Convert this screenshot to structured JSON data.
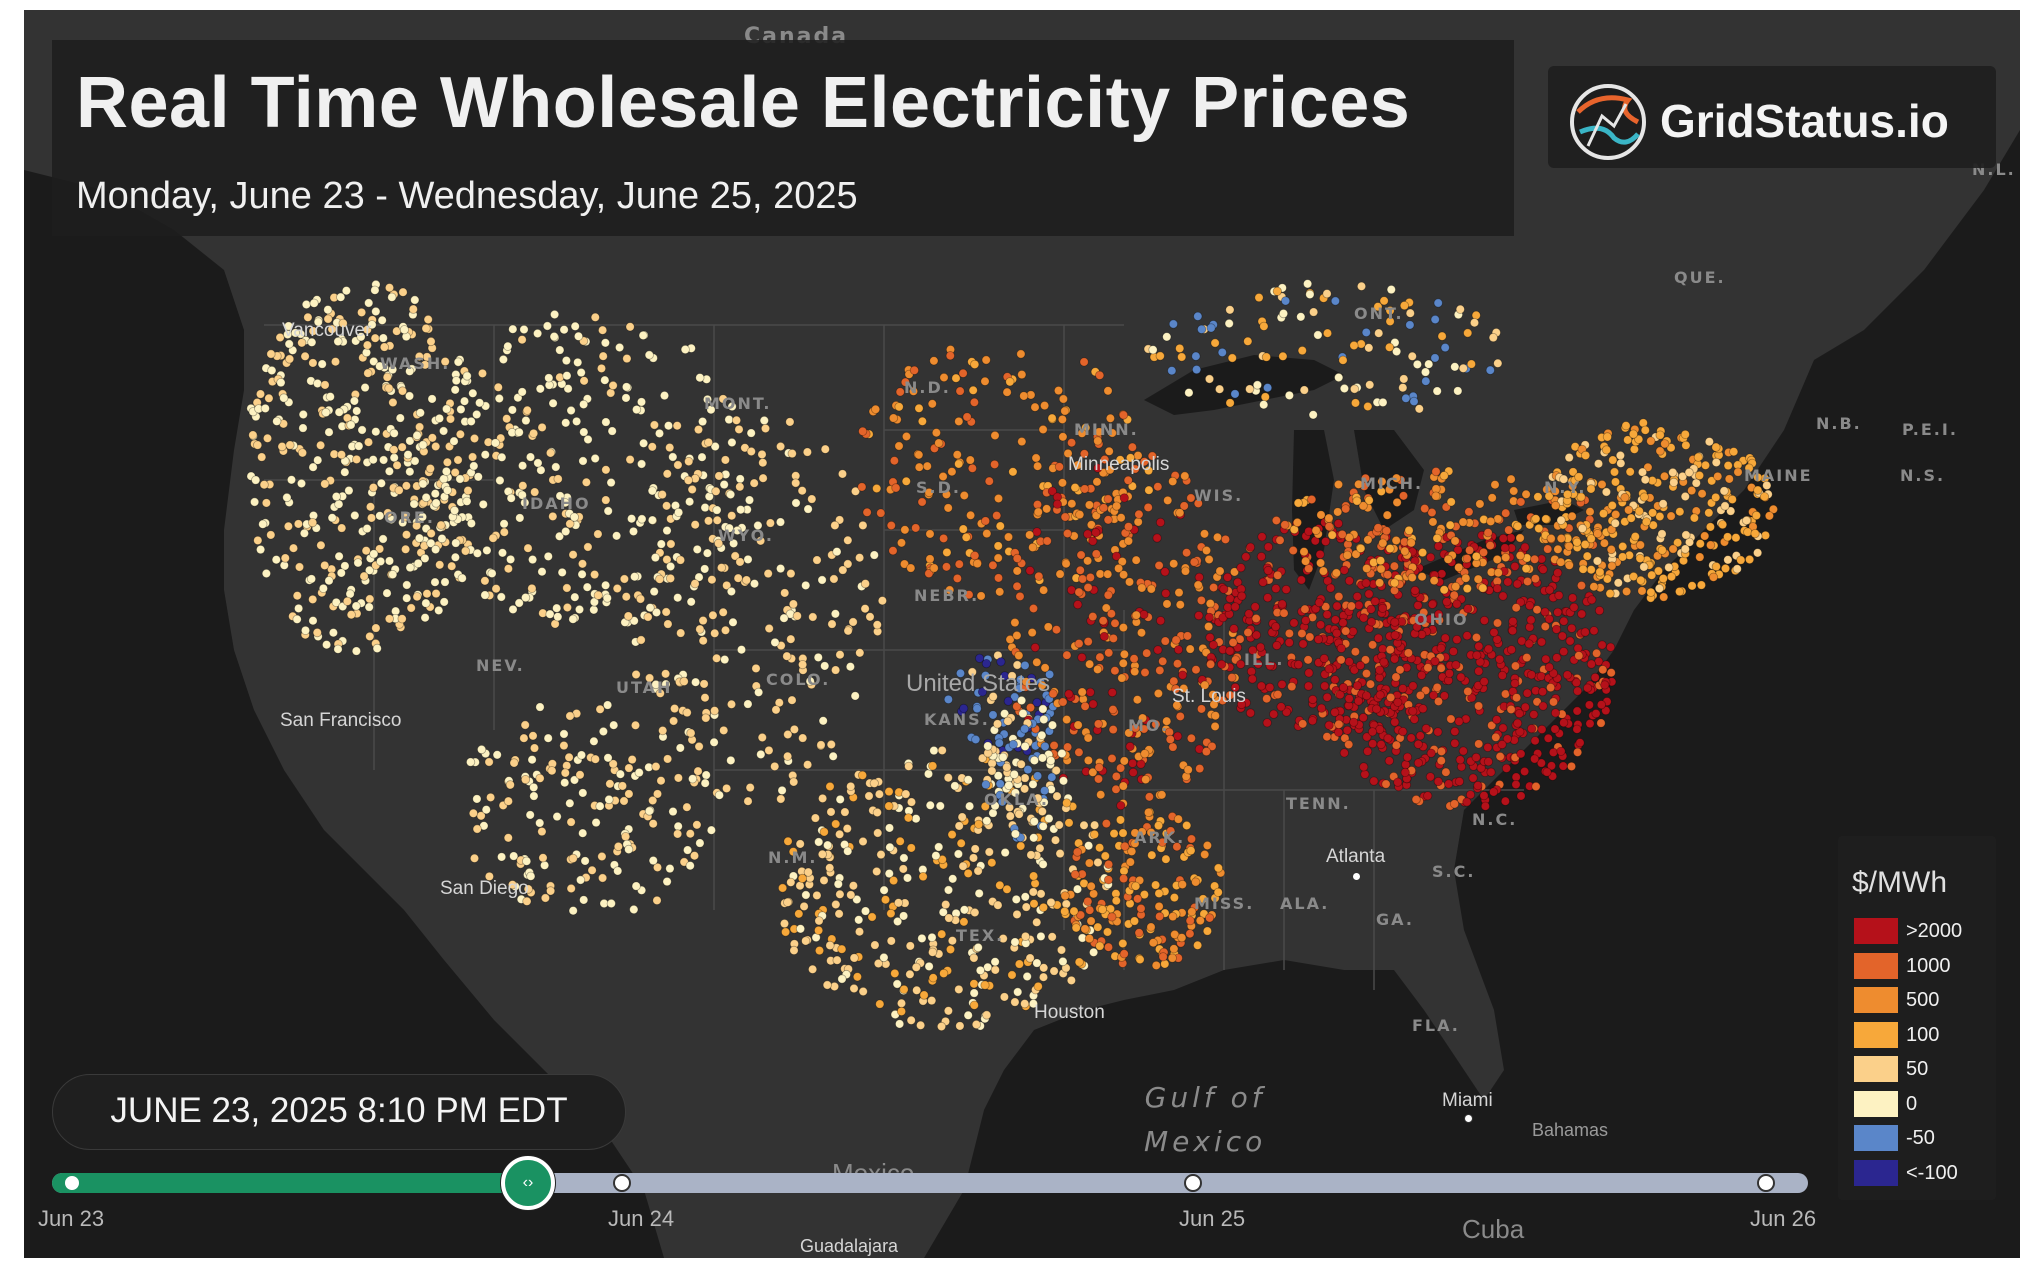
{
  "header": {
    "title": "Real Time Wholesale Electricity Prices",
    "subtitle": "Monday, June 23 - Wednesday, June 25, 2025"
  },
  "brand": {
    "name": "GridStatus.io"
  },
  "map": {
    "country_labels": [
      "Canada",
      "United States",
      "Mexico",
      "Cuba",
      "Bahamas"
    ],
    "region_labels": [
      "QUE.",
      "ONT.",
      "N.B.",
      "P.E.I.",
      "N.S.",
      "N.L.",
      "MAINE",
      "N.D.",
      "S.D.",
      "MINN.",
      "WIS.",
      "MICH.",
      "NEBR.",
      "COLO.",
      "IDAHO",
      "WYO.",
      "MONT.",
      "ORE.",
      "WASH.",
      "NEV.",
      "UTAH",
      "N.M.",
      "TEX.",
      "MO.",
      "ILL.",
      "TENN.",
      "N.C.",
      "S.C.",
      "GA.",
      "ALA.",
      "MISS.",
      "ARK.",
      "FLA.",
      "N.Y.",
      "KANS.",
      "OKLA.",
      "OHIO"
    ],
    "cities": [
      "Vancouver",
      "Minneapolis",
      "St. Louis",
      "Atlanta",
      "Miami",
      "San Francisco",
      "San Diego",
      "Houston",
      "Guadalajara"
    ],
    "water_label_line1": "Gulf of",
    "water_label_line2": "Mexico"
  },
  "legend": {
    "title": "$/MWh",
    "items": [
      {
        "label": ">2000",
        "color": "#b5111a"
      },
      {
        "label": "1000",
        "color": "#e3642a"
      },
      {
        "label": "500",
        "color": "#ee8c2f"
      },
      {
        "label": "100",
        "color": "#f7a83a"
      },
      {
        "label": "50",
        "color": "#fbd08a"
      },
      {
        "label": "0",
        "color": "#fdf2c2"
      },
      {
        "label": "-50",
        "color": "#5a86c9"
      },
      {
        "label": "<-100",
        "color": "#2b2690"
      }
    ]
  },
  "timeline": {
    "current_time": "JUNE 23, 2025 8:10 PM EDT",
    "progress": 0.268,
    "dates": [
      "Jun 23",
      "Jun 24",
      "Jun 25",
      "Jun 26"
    ]
  },
  "colors": {
    "background": "#2a2a2a",
    "land": "#333333",
    "water": "#1a1a1a",
    "accent": "#1a9262"
  }
}
